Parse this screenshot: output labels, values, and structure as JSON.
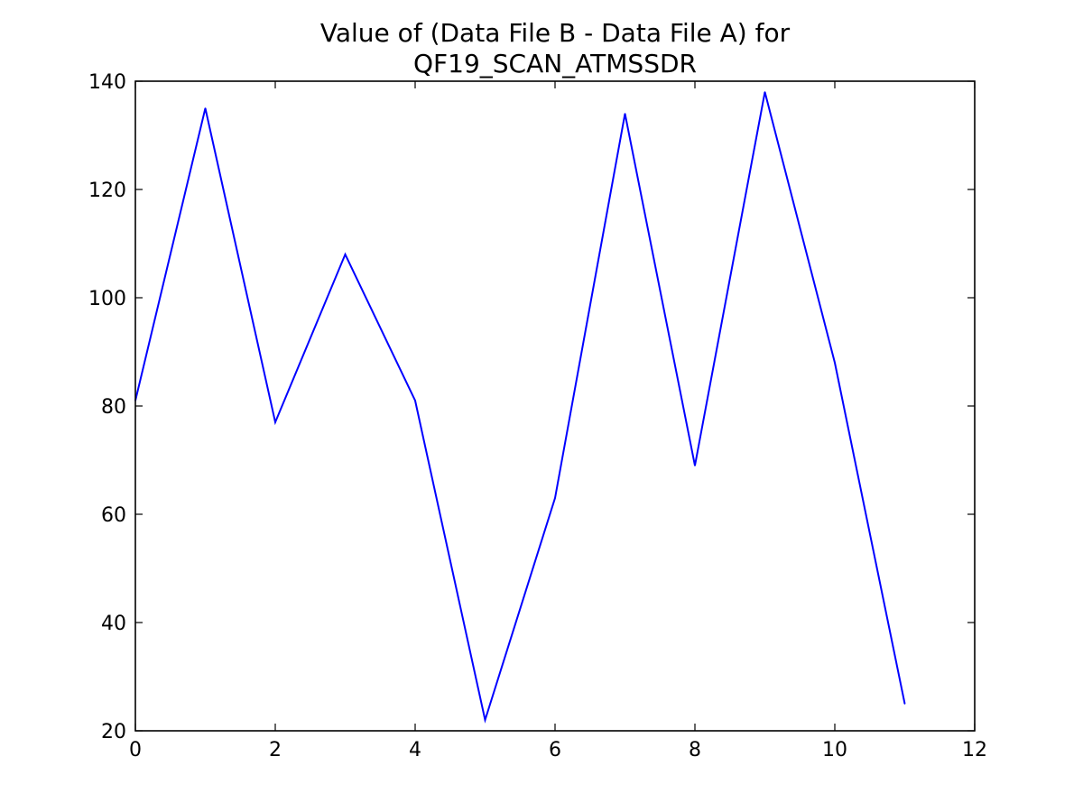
{
  "chart_data": {
    "type": "line",
    "title_lines": [
      "Value of (Data File B - Data File A) for",
      "QF19_SCAN_ATMSSDR"
    ],
    "xlabel": "",
    "ylabel": "",
    "xlim": [
      0,
      12
    ],
    "ylim": [
      20,
      140
    ],
    "xticks": [
      0,
      2,
      4,
      6,
      8,
      10,
      12
    ],
    "yticks": [
      20,
      40,
      60,
      80,
      100,
      120,
      140
    ],
    "grid": false,
    "legend": "none",
    "series": [
      {
        "color": "#0000ff",
        "x": [
          0,
          1,
          2,
          3,
          4,
          5,
          6,
          7,
          8,
          9,
          10,
          11
        ],
        "y": [
          81,
          135,
          77,
          108,
          81,
          22,
          63,
          134,
          69,
          138,
          88,
          25
        ]
      }
    ]
  }
}
